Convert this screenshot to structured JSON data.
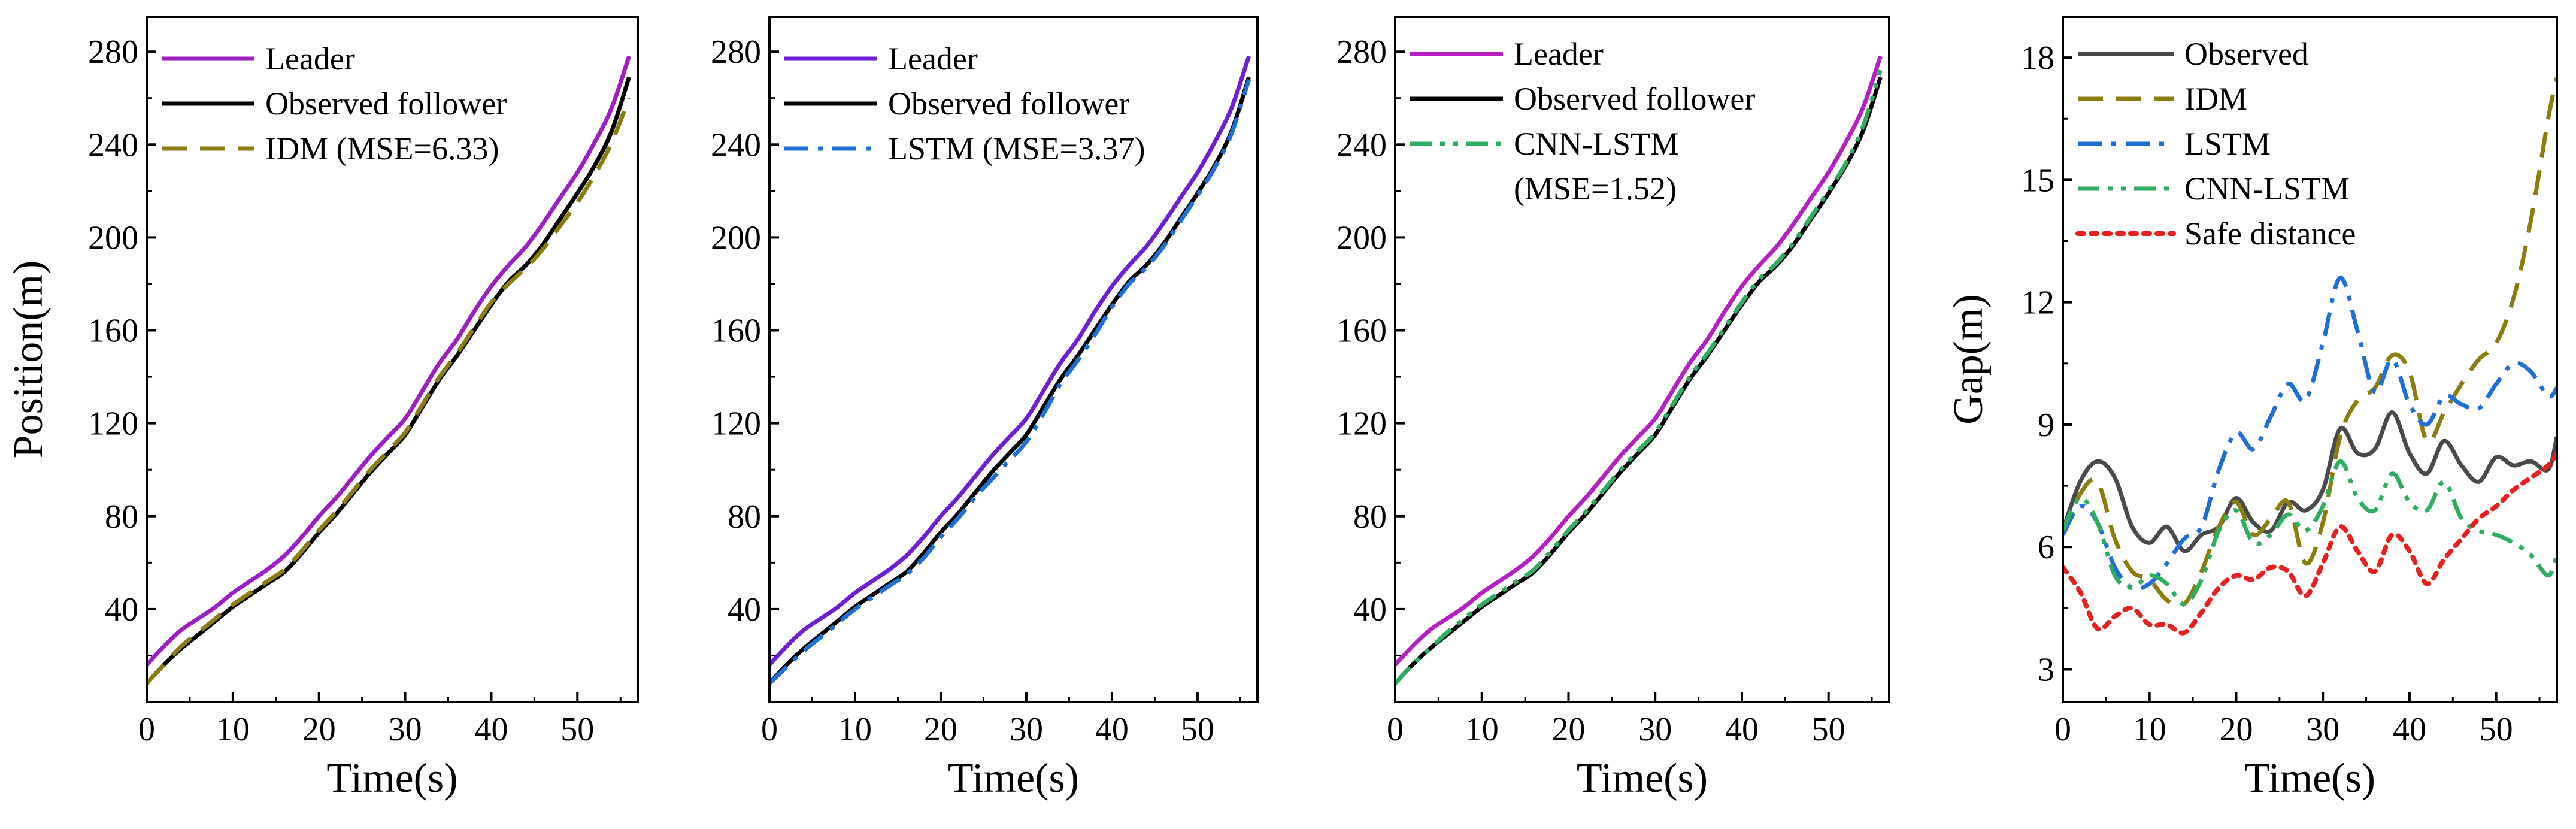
{
  "chart_data": [
    {
      "type": "line",
      "ylabel": "Position(m)",
      "xlabel": "Time(s)",
      "xlim": [
        0,
        57
      ],
      "ylim": [
        0,
        295
      ],
      "xticks": [
        "0",
        "10",
        "20",
        "30",
        "40",
        "50"
      ],
      "yticks": [
        "40",
        "80",
        "120",
        "160",
        "200",
        "240",
        "280"
      ],
      "legend_position": "top-left",
      "series": [
        {
          "name": "Leader",
          "color": "#9b1fc4",
          "style": "solid",
          "x": [
            0,
            2,
            4,
            6,
            8,
            10,
            12,
            14,
            16,
            18,
            20,
            22,
            24,
            26,
            28,
            30,
            32,
            34,
            36,
            38,
            40,
            42,
            44,
            46,
            48,
            50,
            52,
            54,
            56
          ],
          "y": [
            16,
            24,
            31,
            36,
            41,
            47,
            52,
            57,
            63,
            71,
            80,
            88,
            97,
            106,
            114,
            122,
            134,
            146,
            156,
            168,
            179,
            188,
            196,
            206,
            217,
            228,
            241,
            256,
            278
          ]
        },
        {
          "name": "Observed follower",
          "color": "#000000",
          "style": "solid",
          "x": [
            0,
            2,
            4,
            6,
            8,
            10,
            12,
            14,
            16,
            18,
            20,
            22,
            24,
            26,
            28,
            30,
            32,
            34,
            36,
            38,
            40,
            42,
            44,
            46,
            48,
            50,
            52,
            54,
            56
          ],
          "y": [
            8,
            16,
            23,
            29,
            35,
            41,
            46,
            51,
            56,
            64,
            73,
            81,
            90,
            99,
            107,
            115,
            127,
            139,
            149,
            160,
            171,
            181,
            188,
            197,
            208,
            219,
            231,
            246,
            269
          ]
        },
        {
          "name": "IDM (MSE=6.33)",
          "color": "#8b7d10",
          "style": "dashed",
          "x": [
            0,
            2,
            4,
            6,
            8,
            10,
            12,
            14,
            16,
            18,
            20,
            22,
            24,
            26,
            28,
            30,
            32,
            34,
            36,
            38,
            40,
            42,
            44,
            46,
            48,
            50,
            52,
            54,
            56
          ],
          "y": [
            8,
            16,
            24,
            30,
            36,
            42,
            47,
            52,
            57,
            65,
            74,
            82,
            91,
            100,
            108,
            116,
            128,
            140,
            150,
            161,
            172,
            180,
            187,
            195,
            205,
            215,
            227,
            241,
            260
          ]
        }
      ]
    },
    {
      "type": "line",
      "ylabel": "",
      "xlabel": "Time(s)",
      "xlim": [
        0,
        57
      ],
      "ylim": [
        0,
        295
      ],
      "xticks": [
        "0",
        "10",
        "20",
        "30",
        "40",
        "50"
      ],
      "yticks": [
        "40",
        "80",
        "120",
        "160",
        "200",
        "240",
        "280"
      ],
      "legend_position": "top-left",
      "series": [
        {
          "name": "Leader",
          "color": "#6e1fd6",
          "style": "solid",
          "x": [
            0,
            2,
            4,
            6,
            8,
            10,
            12,
            14,
            16,
            18,
            20,
            22,
            24,
            26,
            28,
            30,
            32,
            34,
            36,
            38,
            40,
            42,
            44,
            46,
            48,
            50,
            52,
            54,
            56
          ],
          "y": [
            16,
            24,
            31,
            36,
            41,
            47,
            52,
            57,
            63,
            71,
            80,
            88,
            97,
            106,
            114,
            122,
            134,
            146,
            156,
            168,
            179,
            188,
            196,
            206,
            217,
            228,
            241,
            256,
            278
          ]
        },
        {
          "name": "Observed follower",
          "color": "#000000",
          "style": "solid",
          "x": [
            0,
            2,
            4,
            6,
            8,
            10,
            12,
            14,
            16,
            18,
            20,
            22,
            24,
            26,
            28,
            30,
            32,
            34,
            36,
            38,
            40,
            42,
            44,
            46,
            48,
            50,
            52,
            54,
            56
          ],
          "y": [
            8,
            16,
            23,
            29,
            35,
            41,
            46,
            51,
            56,
            64,
            73,
            81,
            90,
            99,
            107,
            115,
            127,
            139,
            149,
            160,
            171,
            181,
            188,
            197,
            208,
            219,
            231,
            246,
            269
          ]
        },
        {
          "name": "LSTM (MSE=3.37)",
          "color": "#1f6fd6",
          "style": "dashdot",
          "x": [
            0,
            2,
            4,
            6,
            8,
            10,
            12,
            14,
            16,
            18,
            20,
            22,
            24,
            26,
            28,
            30,
            32,
            34,
            36,
            38,
            40,
            42,
            44,
            46,
            48,
            50,
            52,
            54,
            56
          ],
          "y": [
            8,
            15,
            22,
            28,
            34,
            40,
            45,
            50,
            55,
            62,
            71,
            79,
            88,
            96,
            104,
            112,
            124,
            137,
            147,
            158,
            170,
            180,
            187,
            196,
            207,
            218,
            230,
            245,
            268
          ]
        }
      ]
    },
    {
      "type": "line",
      "ylabel": "",
      "xlabel": "Time(s)",
      "xlim": [
        0,
        57
      ],
      "ylim": [
        0,
        295
      ],
      "xticks": [
        "0",
        "10",
        "20",
        "30",
        "40",
        "50"
      ],
      "yticks": [
        "40",
        "80",
        "120",
        "160",
        "200",
        "240",
        "280"
      ],
      "legend_position": "top-left",
      "legend_extra_line": "(MSE=1.52)",
      "series": [
        {
          "name": "Leader",
          "color": "#b51fc4",
          "style": "solid",
          "x": [
            0,
            2,
            4,
            6,
            8,
            10,
            12,
            14,
            16,
            18,
            20,
            22,
            24,
            26,
            28,
            30,
            32,
            34,
            36,
            38,
            40,
            42,
            44,
            46,
            48,
            50,
            52,
            54,
            56
          ],
          "y": [
            16,
            24,
            31,
            36,
            41,
            47,
            52,
            57,
            63,
            71,
            80,
            88,
            97,
            106,
            114,
            122,
            134,
            146,
            156,
            168,
            179,
            188,
            196,
            206,
            217,
            228,
            241,
            256,
            278
          ]
        },
        {
          "name": "Observed follower",
          "color": "#000000",
          "style": "solid",
          "x": [
            0,
            2,
            4,
            6,
            8,
            10,
            12,
            14,
            16,
            18,
            20,
            22,
            24,
            26,
            28,
            30,
            32,
            34,
            36,
            38,
            40,
            42,
            44,
            46,
            48,
            50,
            52,
            54,
            56
          ],
          "y": [
            8,
            16,
            23,
            29,
            35,
            41,
            46,
            51,
            56,
            64,
            73,
            81,
            90,
            99,
            107,
            115,
            127,
            139,
            149,
            160,
            171,
            181,
            188,
            197,
            208,
            219,
            231,
            246,
            269
          ]
        },
        {
          "name": "CNN-LSTM",
          "color": "#2fae62",
          "style": "dashdotdot",
          "x": [
            0,
            2,
            4,
            6,
            8,
            10,
            12,
            14,
            16,
            18,
            20,
            22,
            24,
            26,
            28,
            30,
            32,
            34,
            36,
            38,
            40,
            42,
            44,
            46,
            48,
            50,
            52,
            54,
            56
          ],
          "y": [
            8,
            16,
            23,
            30,
            36,
            42,
            47,
            52,
            57,
            65,
            74,
            82,
            91,
            100,
            108,
            116,
            128,
            140,
            150,
            161,
            172,
            182,
            189,
            198,
            209,
            220,
            232,
            248,
            272
          ]
        }
      ]
    },
    {
      "type": "line",
      "ylabel": "Gap(m)",
      "xlabel": "Time(s)",
      "xlim": [
        0,
        57
      ],
      "ylim": [
        2.2,
        19
      ],
      "xticks": [
        "0",
        "10",
        "20",
        "30",
        "40",
        "50"
      ],
      "yticks": [
        "3",
        "6",
        "9",
        "12",
        "15",
        "18"
      ],
      "legend_position": "top-left",
      "series": [
        {
          "name": "Observed",
          "color": "#4a4a4a",
          "style": "solid",
          "x": [
            0,
            2,
            4,
            6,
            8,
            10,
            12,
            14,
            16,
            18,
            20,
            22,
            24,
            26,
            28,
            30,
            32,
            34,
            36,
            38,
            40,
            42,
            44,
            46,
            48,
            50,
            52,
            54,
            56,
            57
          ],
          "y": [
            6.4,
            7.6,
            8.1,
            7.7,
            6.5,
            6.1,
            6.5,
            5.9,
            6.3,
            6.5,
            7.2,
            6.6,
            6.4,
            7.1,
            6.9,
            7.4,
            8.9,
            8.3,
            8.4,
            9.3,
            8.3,
            7.8,
            8.6,
            8.0,
            7.6,
            8.2,
            8.0,
            8.1,
            7.9,
            8.7
          ]
        },
        {
          "name": "IDM",
          "color": "#8b7d10",
          "style": "dashed",
          "x": [
            0,
            2,
            4,
            6,
            8,
            10,
            12,
            14,
            16,
            18,
            20,
            22,
            24,
            26,
            28,
            30,
            32,
            34,
            36,
            38,
            40,
            42,
            44,
            46,
            48,
            50,
            52,
            54,
            56,
            57
          ],
          "y": [
            6.3,
            7.3,
            7.6,
            6.2,
            5.4,
            5.2,
            4.7,
            4.6,
            5.4,
            6.5,
            7.1,
            6.3,
            6.7,
            7.1,
            5.6,
            6.6,
            8.7,
            9.6,
            9.9,
            10.7,
            10.3,
            8.6,
            9.3,
            10.0,
            10.6,
            11.0,
            12.1,
            14.0,
            16.5,
            17.5
          ]
        },
        {
          "name": "LSTM",
          "color": "#1f6fd6",
          "style": "dashdot",
          "x": [
            0,
            2,
            4,
            6,
            8,
            10,
            12,
            14,
            16,
            18,
            20,
            22,
            24,
            26,
            28,
            30,
            32,
            34,
            36,
            38,
            40,
            42,
            44,
            46,
            48,
            50,
            52,
            54,
            56,
            57
          ],
          "y": [
            6.3,
            7.0,
            6.6,
            5.5,
            5.0,
            5.1,
            5.6,
            6.2,
            6.5,
            7.9,
            8.8,
            8.4,
            9.2,
            10.0,
            9.6,
            11.0,
            12.6,
            11.3,
            9.8,
            10.6,
            9.5,
            9.0,
            9.7,
            9.5,
            9.4,
            10.0,
            10.5,
            10.3,
            9.7,
            9.9
          ]
        },
        {
          "name": "CNN-LSTM",
          "color": "#2fae62",
          "style": "dashdotdot",
          "x": [
            0,
            2,
            4,
            6,
            8,
            10,
            12,
            14,
            16,
            18,
            20,
            22,
            24,
            26,
            28,
            30,
            32,
            34,
            36,
            38,
            40,
            42,
            44,
            46,
            48,
            50,
            52,
            54,
            56,
            57
          ],
          "y": [
            6.4,
            7.2,
            6.6,
            5.3,
            5.0,
            5.3,
            5.1,
            4.6,
            5.2,
            6.4,
            6.9,
            6.1,
            6.3,
            6.8,
            6.4,
            7.0,
            8.1,
            7.2,
            6.9,
            7.8,
            7.1,
            6.9,
            7.6,
            6.7,
            6.4,
            6.3,
            6.1,
            5.8,
            5.3,
            5.8
          ]
        },
        {
          "name": "Safe distance",
          "color": "#e8201f",
          "style": "dotted",
          "x": [
            0,
            2,
            4,
            6,
            8,
            10,
            12,
            14,
            16,
            18,
            20,
            22,
            24,
            26,
            28,
            30,
            32,
            34,
            36,
            38,
            40,
            42,
            44,
            46,
            48,
            50,
            52,
            54,
            56,
            57
          ],
          "y": [
            5.5,
            4.9,
            4.0,
            4.3,
            4.5,
            4.1,
            4.1,
            3.9,
            4.4,
            5.0,
            5.3,
            5.2,
            5.5,
            5.4,
            4.8,
            5.6,
            6.5,
            5.9,
            5.4,
            6.3,
            5.9,
            5.1,
            5.7,
            6.2,
            6.7,
            7.0,
            7.4,
            7.7,
            8.0,
            8.3
          ]
        }
      ]
    }
  ]
}
